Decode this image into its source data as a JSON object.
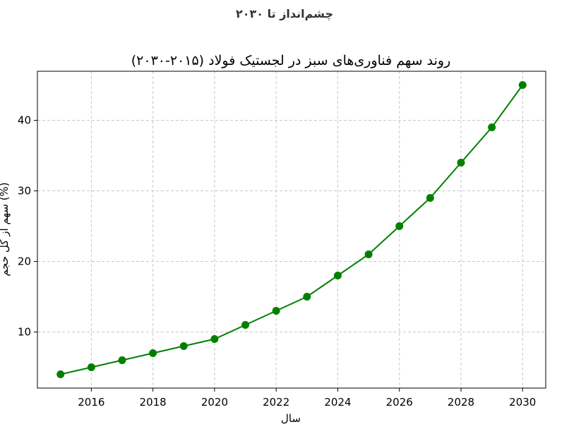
{
  "page": {
    "heading": "چشم‌انداز تا ۲۰۳۰"
  },
  "chart_data": {
    "type": "line",
    "title": "روند سهم فناوری‌های سبز در لجستیک فولاد (۲۰۱۵-۲۰۳۰)",
    "xlabel": "سال",
    "ylabel": "سهم از کل حجم (%)",
    "x": [
      2015,
      2016,
      2017,
      2018,
      2019,
      2020,
      2021,
      2022,
      2023,
      2024,
      2025,
      2026,
      2027,
      2028,
      2029,
      2030
    ],
    "series": [
      {
        "values": [
          4,
          5,
          6,
          7,
          8,
          9,
          11,
          13,
          15,
          18,
          21,
          25,
          29,
          34,
          39,
          45
        ],
        "color": "#008000",
        "marker": "circle"
      }
    ],
    "xticks": [
      2016,
      2018,
      2020,
      2022,
      2024,
      2026,
      2028,
      2030
    ],
    "yticks": [
      10,
      20,
      30,
      40
    ],
    "xlim": [
      2014.25,
      2030.75
    ],
    "ylim": [
      2.05,
      46.95
    ],
    "grid": true
  }
}
